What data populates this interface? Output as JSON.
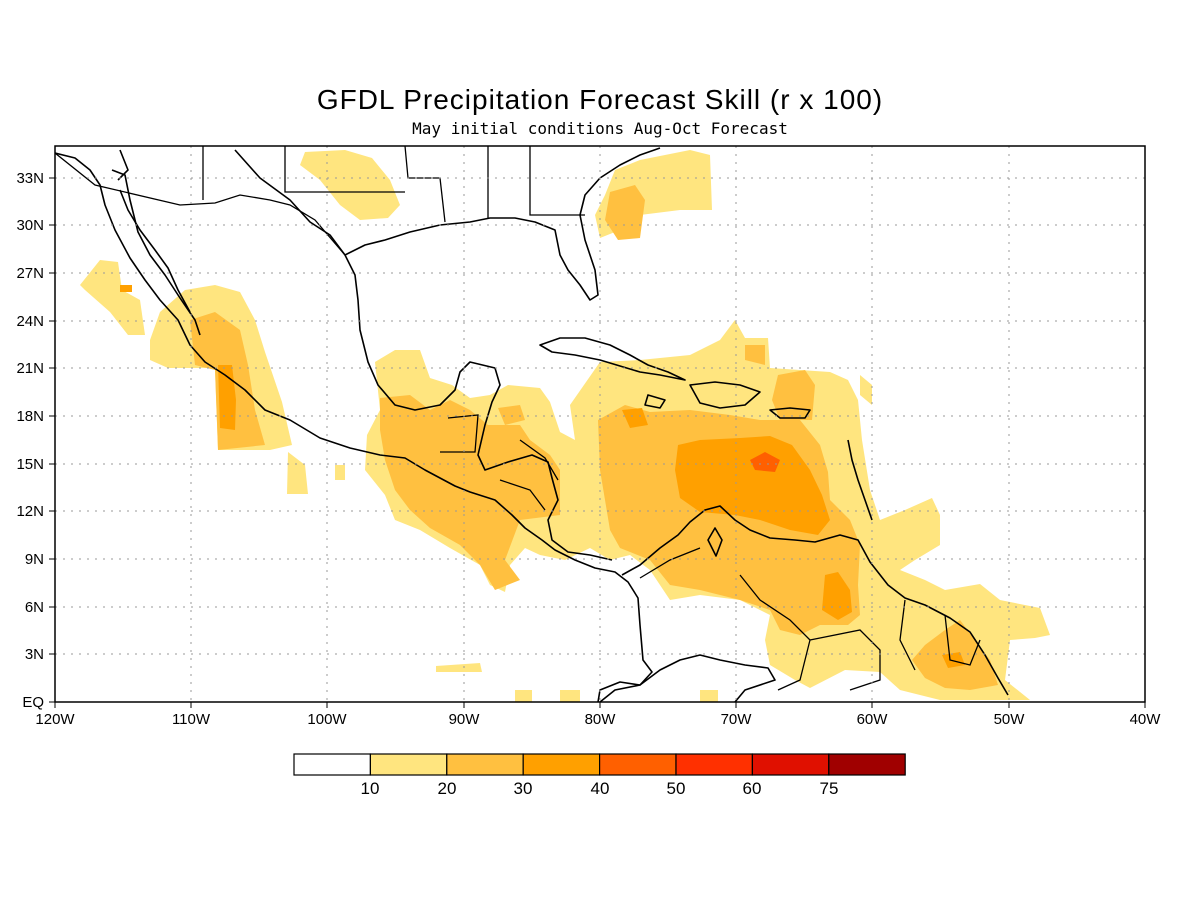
{
  "title": "GFDL Precipitation Forecast Skill (r x 100)",
  "subtitle": "May initial conditions  Aug-Oct Forecast",
  "map": {
    "lon_ticks": [
      "120W",
      "110W",
      "100W",
      "90W",
      "80W",
      "70W",
      "60W",
      "50W",
      "40W"
    ],
    "lat_ticks": [
      "EQ",
      "3N",
      "6N",
      "9N",
      "12N",
      "15N",
      "18N",
      "21N",
      "24N",
      "27N",
      "30N",
      "33N"
    ],
    "lon_range": [
      -120,
      -40
    ],
    "lat_range": [
      0,
      35
    ],
    "grid": "dotted"
  },
  "colorbar": {
    "levels": [
      "10",
      "20",
      "30",
      "40",
      "50",
      "60",
      "75"
    ],
    "colors": [
      "#ffffff",
      "#ffe57f",
      "#ffc040",
      "#ffa000",
      "#ff6000",
      "#ff3000",
      "#e01000",
      "#a00000"
    ]
  }
}
